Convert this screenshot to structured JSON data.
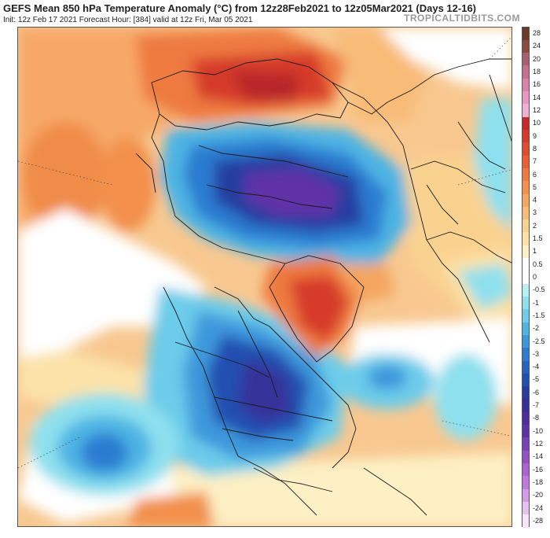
{
  "header": {
    "title": "GEFS Mean 850 hPa Temperature Anomaly (°C) from 12z28Feb2021 to 12z05Mar2021 (Days 12-16)",
    "subtitle": "Init: 12z Feb 17 2021   Forecast Hour: [384]   valid at 12z Fri, Mar 05 2021",
    "brand": "TROPICALTIDBITS.COM"
  },
  "colorbar": {
    "labels": [
      "28",
      "24",
      "20",
      "18",
      "16",
      "14",
      "12",
      "10",
      "9",
      "8",
      "7",
      "6",
      "5",
      "4",
      "3",
      "2",
      "1.5",
      "1",
      "0.5",
      "0",
      "-0.5",
      "-1",
      "-1.5",
      "-2",
      "-2.5",
      "-3",
      "-4",
      "-5",
      "-6",
      "-7",
      "-8",
      "-10",
      "-12",
      "-14",
      "-16",
      "-18",
      "-20",
      "-24",
      "-28"
    ],
    "colors": [
      "#6b3a2a",
      "#8a4a3c",
      "#a86070",
      "#c2708c",
      "#d884a8",
      "#e898c0",
      "#f0b0d0",
      "#c8282a",
      "#d63a2c",
      "#e04c30",
      "#e86034",
      "#ee7a40",
      "#f2904c",
      "#f5a660",
      "#f8bc78",
      "#fad290",
      "#fce2a8",
      "#fdf0c4",
      "#ffffff",
      "#ffffff",
      "#b8f0f4",
      "#8ee0ee",
      "#6cccea",
      "#4eb4e4",
      "#3c98dc",
      "#2c7cd0",
      "#2464c0",
      "#2050b0",
      "#283ca0",
      "#36309a",
      "#4a2ca0",
      "#6030a8",
      "#7a40b8",
      "#9450c4",
      "#ac62d0",
      "#c078dc",
      "#d49ae6",
      "#e6c0f0",
      "#f6e4f8"
    ]
  }
}
